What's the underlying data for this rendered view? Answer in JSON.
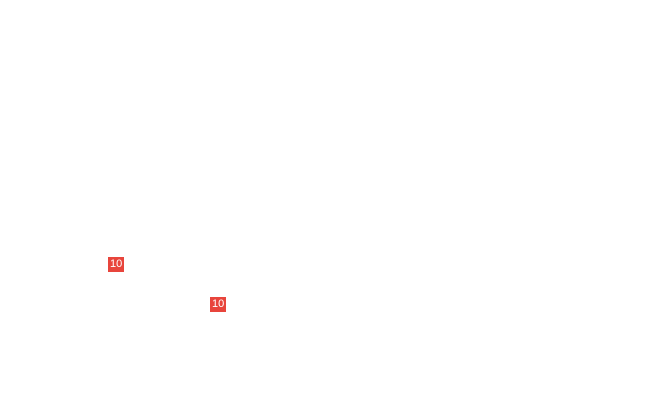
{
  "badge_color": "#e8453c",
  "badges": [
    {
      "label": "10"
    },
    {
      "label": "10"
    }
  ]
}
